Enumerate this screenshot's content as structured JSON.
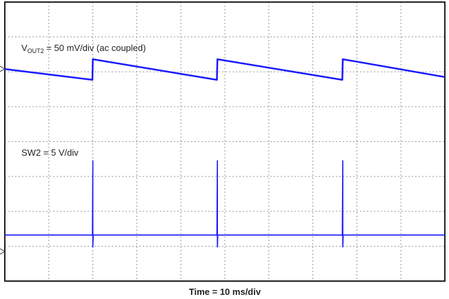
{
  "chart_data": {
    "type": "line",
    "xlabel": "Time = 10 ms/div",
    "vout_label": {
      "main": "V",
      "sub": "OUT2",
      "rest": " = 50 mV/div (ac coupled)"
    },
    "sw_label": "SW2 = 5 V/div",
    "xlim": [
      0,
      100
    ],
    "ylim": [
      0,
      8
    ],
    "xticks": [
      0,
      10,
      20,
      30,
      40,
      50,
      60,
      70,
      80,
      90,
      100
    ],
    "yticks": [
      0,
      1,
      2,
      3,
      4,
      5,
      6,
      7,
      8
    ],
    "grid": true,
    "series": [
      {
        "color": "#1a1aff",
        "x": [
          0,
          19.9,
          20.0,
          48.2,
          48.3,
          76.7,
          76.8,
          100
        ],
        "values": [
          6.08,
          5.77,
          6.36,
          5.77,
          6.36,
          5.77,
          6.36,
          5.85
        ]
      },
      {
        "color": "#1a1aff",
        "x": [
          0,
          19.9,
          20.0,
          20.0,
          20.1,
          48.2,
          48.3,
          48.3,
          48.4,
          76.7,
          76.8,
          76.8,
          76.9,
          100
        ],
        "values": [
          1.32,
          1.32,
          3.45,
          0.98,
          1.32,
          1.32,
          3.45,
          0.98,
          1.32,
          1.32,
          3.45,
          0.98,
          1.32,
          1.32
        ]
      }
    ]
  }
}
